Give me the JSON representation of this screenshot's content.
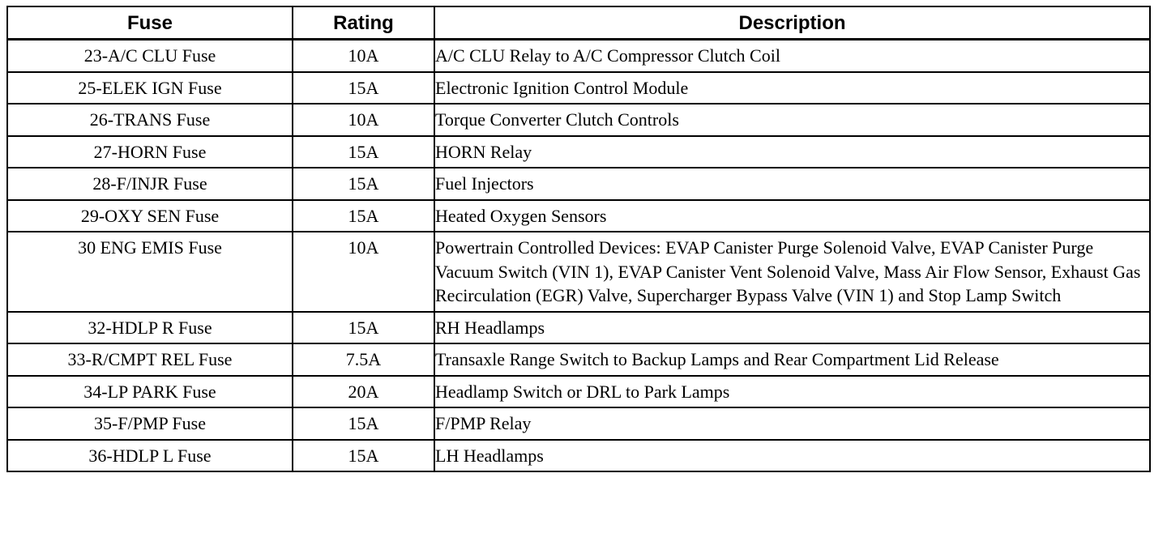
{
  "table": {
    "headers": {
      "fuse": "Fuse",
      "rating": "Rating",
      "description": "Description"
    },
    "rows": [
      {
        "fuse": "23-A/C CLU Fuse",
        "rating": "10A",
        "description": "A/C CLU Relay to A/C Compressor Clutch Coil"
      },
      {
        "fuse": "25-ELEK IGN Fuse",
        "rating": "15A",
        "description": "Electronic Ignition Control Module"
      },
      {
        "fuse": "26-TRANS Fuse",
        "rating": "10A",
        "description": "Torque Converter Clutch Controls"
      },
      {
        "fuse": "27-HORN Fuse",
        "rating": "15A",
        "description": "HORN Relay"
      },
      {
        "fuse": "28-F/INJR Fuse",
        "rating": "15A",
        "description": "Fuel Injectors"
      },
      {
        "fuse": "29-OXY SEN Fuse",
        "rating": "15A",
        "description": "Heated Oxygen Sensors"
      },
      {
        "fuse": "30 ENG EMIS Fuse",
        "rating": "10A",
        "description": "Powertrain Controlled Devices: EVAP Canister Purge Solenoid Valve, EVAP Canister Purge Vacuum Switch (VIN 1), EVAP Canister Vent Solenoid Valve, Mass Air Flow Sensor, Exhaust Gas Recirculation (EGR) Valve, Supercharger Bypass Valve (VIN 1) and Stop Lamp Switch"
      },
      {
        "fuse": "32-HDLP R Fuse",
        "rating": "15A",
        "description": "RH Headlamps"
      },
      {
        "fuse": "33-R/CMPT REL Fuse",
        "rating": "7.5A",
        "description": "Transaxle Range Switch to Backup Lamps and Rear Compartment Lid Release"
      },
      {
        "fuse": "34-LP PARK Fuse",
        "rating": "20A",
        "description": "Headlamp Switch or DRL to Park Lamps"
      },
      {
        "fuse": "35-F/PMP Fuse",
        "rating": "15A",
        "description": "F/PMP Relay"
      },
      {
        "fuse": "36-HDLP L Fuse",
        "rating": "15A",
        "description": "LH Headlamps"
      }
    ]
  }
}
